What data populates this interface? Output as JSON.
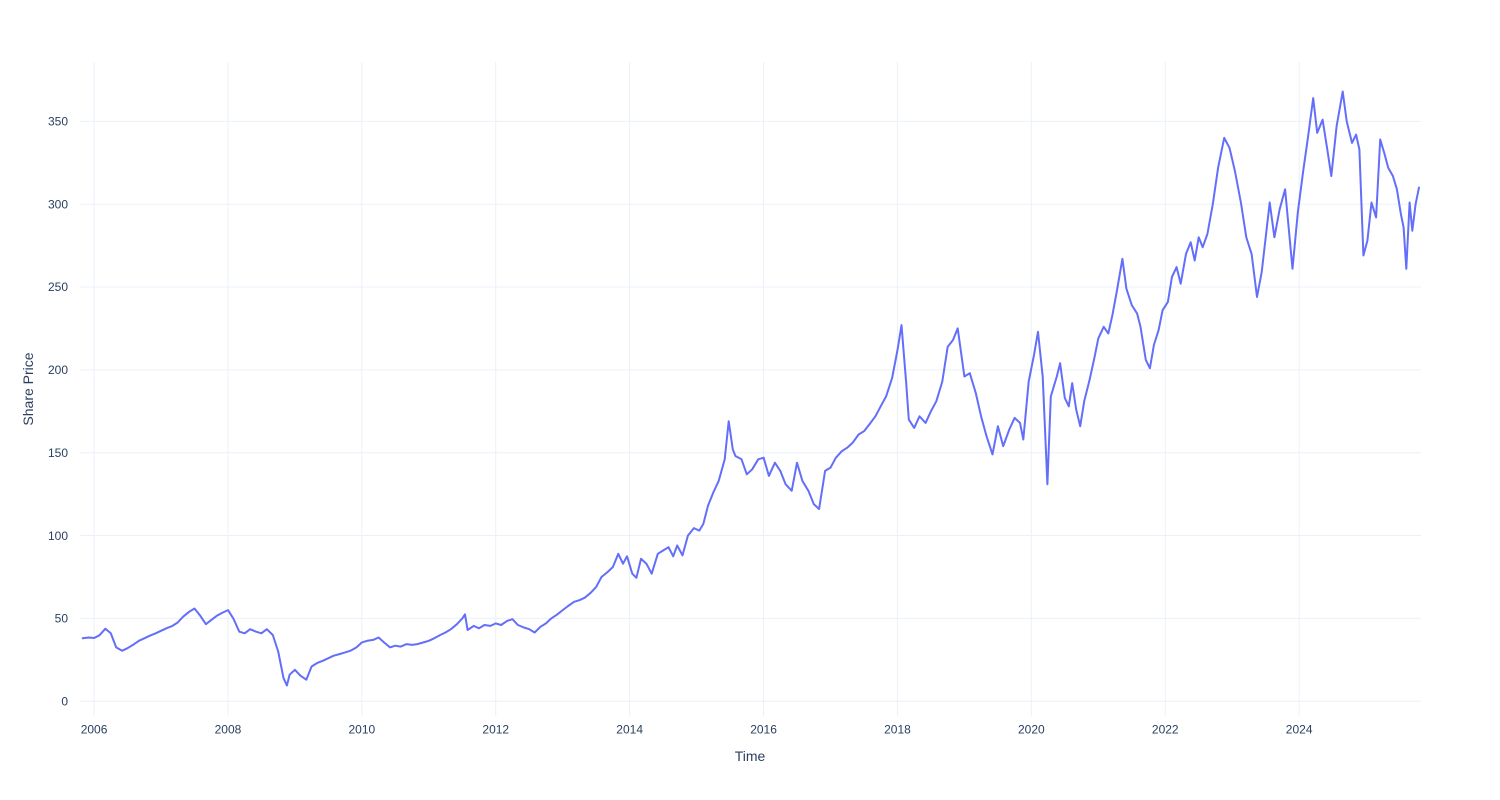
{
  "chart_data": {
    "type": "line",
    "title": "",
    "xlabel": "Time",
    "ylabel": "Share Price",
    "series_name": "Share Price",
    "line_color": "#636EFA",
    "grid_color": "#EBF0F8",
    "font_color": "#2a3f5f",
    "background_color": "#ffffff",
    "grid": true,
    "legend": false,
    "line_width": 2,
    "x_ticks": [
      2006,
      2008,
      2010,
      2012,
      2014,
      2016,
      2018,
      2020,
      2022,
      2024
    ],
    "y_ticks": [
      0,
      50,
      100,
      150,
      200,
      250,
      300,
      350
    ],
    "xlim": [
      2005.79,
      2025.82
    ],
    "ylim": [
      -8.9,
      385.8
    ],
    "x": [
      2005.83,
      2005.92,
      2006.0,
      2006.08,
      2006.17,
      2006.25,
      2006.33,
      2006.42,
      2006.5,
      2006.58,
      2006.67,
      2006.75,
      2006.83,
      2006.92,
      2007.0,
      2007.08,
      2007.17,
      2007.25,
      2007.33,
      2007.42,
      2007.5,
      2007.58,
      2007.67,
      2007.75,
      2007.83,
      2007.92,
      2008.0,
      2008.08,
      2008.17,
      2008.25,
      2008.33,
      2008.42,
      2008.5,
      2008.58,
      2008.67,
      2008.75,
      2008.83,
      2008.88,
      2008.92,
      2009.0,
      2009.08,
      2009.17,
      2009.25,
      2009.33,
      2009.42,
      2009.5,
      2009.58,
      2009.67,
      2009.75,
      2009.83,
      2009.92,
      2010.0,
      2010.08,
      2010.17,
      2010.25,
      2010.33,
      2010.42,
      2010.5,
      2010.58,
      2010.67,
      2010.75,
      2010.83,
      2010.92,
      2011.0,
      2011.08,
      2011.17,
      2011.25,
      2011.33,
      2011.42,
      2011.5,
      2011.54,
      2011.58,
      2011.67,
      2011.75,
      2011.83,
      2011.92,
      2012.0,
      2012.08,
      2012.17,
      2012.25,
      2012.33,
      2012.42,
      2012.5,
      2012.58,
      2012.67,
      2012.75,
      2012.83,
      2012.92,
      2013.0,
      2013.08,
      2013.17,
      2013.25,
      2013.33,
      2013.42,
      2013.5,
      2013.58,
      2013.67,
      2013.75,
      2013.83,
      2013.9,
      2013.96,
      2014.04,
      2014.1,
      2014.17,
      2014.25,
      2014.33,
      2014.42,
      2014.5,
      2014.58,
      2014.65,
      2014.71,
      2014.79,
      2014.87,
      2014.96,
      2015.04,
      2015.1,
      2015.17,
      2015.25,
      2015.33,
      2015.42,
      2015.48,
      2015.54,
      2015.58,
      2015.67,
      2015.75,
      2015.83,
      2015.92,
      2016.0,
      2016.08,
      2016.17,
      2016.25,
      2016.33,
      2016.42,
      2016.5,
      2016.58,
      2016.67,
      2016.75,
      2016.83,
      2016.92,
      2017.0,
      2017.08,
      2017.17,
      2017.25,
      2017.33,
      2017.42,
      2017.5,
      2017.58,
      2017.67,
      2017.75,
      2017.83,
      2017.92,
      2018.0,
      2018.06,
      2018.13,
      2018.17,
      2018.25,
      2018.33,
      2018.42,
      2018.5,
      2018.58,
      2018.67,
      2018.75,
      2018.83,
      2018.9,
      2019.0,
      2019.08,
      2019.17,
      2019.25,
      2019.33,
      2019.42,
      2019.5,
      2019.58,
      2019.67,
      2019.75,
      2019.83,
      2019.88,
      2019.96,
      2020.04,
      2020.1,
      2020.17,
      2020.24,
      2020.29,
      2020.38,
      2020.43,
      2020.5,
      2020.56,
      2020.61,
      2020.67,
      2020.73,
      2020.79,
      2020.87,
      2020.94,
      2021.0,
      2021.08,
      2021.15,
      2021.21,
      2021.28,
      2021.36,
      2021.42,
      2021.5,
      2021.58,
      2021.63,
      2021.71,
      2021.77,
      2021.83,
      2021.9,
      2021.96,
      2022.04,
      2022.1,
      2022.17,
      2022.23,
      2022.31,
      2022.38,
      2022.44,
      2022.5,
      2022.56,
      2022.63,
      2022.71,
      2022.79,
      2022.88,
      2022.96,
      2023.04,
      2023.13,
      2023.21,
      2023.29,
      2023.37,
      2023.44,
      2023.56,
      2023.63,
      2023.71,
      2023.79,
      2023.85,
      2023.9,
      2023.98,
      2024.06,
      2024.13,
      2024.21,
      2024.27,
      2024.35,
      2024.42,
      2024.48,
      2024.56,
      2024.65,
      2024.71,
      2024.79,
      2024.85,
      2024.9,
      2024.96,
      2025.02,
      2025.08,
      2025.15,
      2025.21,
      2025.27,
      2025.33,
      2025.4,
      2025.46,
      2025.52,
      2025.56,
      2025.6,
      2025.65,
      2025.69,
      2025.74,
      2025.79
    ],
    "y": [
      38,
      38.5,
      38.2,
      39.8,
      43.8,
      41,
      32.5,
      30.5,
      32,
      34,
      36.5,
      38,
      39.5,
      41,
      42.5,
      44,
      45.5,
      47.5,
      51,
      54,
      56,
      52,
      46.5,
      49,
      51.5,
      53.5,
      55,
      50,
      42,
      41,
      43.5,
      42,
      41,
      43.5,
      40,
      30,
      14,
      9.5,
      16,
      19,
      15.5,
      13,
      21,
      23,
      24.5,
      26,
      27.5,
      28.5,
      29.5,
      30.5,
      32.5,
      35.5,
      36.5,
      37,
      38.5,
      35.5,
      32.5,
      33.5,
      33,
      34.5,
      34,
      34.5,
      35.5,
      36.5,
      38,
      40,
      41.5,
      43.5,
      46.5,
      50,
      52.5,
      43,
      45.5,
      44,
      46,
      45.5,
      47,
      46,
      48.5,
      49.5,
      46,
      44.5,
      43.5,
      41.5,
      45,
      47,
      50,
      52.5,
      55,
      57.5,
      60,
      61,
      62.5,
      65.5,
      69,
      75,
      78,
      81,
      89,
      83,
      87.5,
      77,
      74.5,
      86,
      83,
      77,
      89,
      91,
      93,
      87.5,
      94,
      88,
      100,
      104.5,
      103,
      107,
      118,
      126,
      133,
      146,
      169,
      152,
      148,
      146,
      137,
      140,
      146,
      147,
      136,
      144,
      139,
      131,
      127,
      144,
      133,
      127,
      119,
      116,
      139,
      141,
      147,
      151,
      153,
      156,
      161,
      163,
      167,
      172,
      178,
      184,
      195,
      212,
      227,
      192,
      170,
      165,
      172,
      168,
      175,
      181,
      193,
      214,
      218,
      225,
      196,
      198,
      186,
      172,
      160,
      149,
      166,
      154,
      164,
      171,
      168,
      158,
      193,
      209,
      223,
      196,
      131,
      184,
      196,
      204,
      183,
      178,
      192,
      176,
      166,
      181,
      194,
      207,
      219,
      226,
      222,
      233,
      248,
      267,
      249,
      239,
      234,
      226,
      206,
      201,
      215,
      224,
      236,
      241,
      256,
      262,
      252,
      270,
      277,
      266,
      280,
      274,
      282,
      300,
      322,
      340,
      334,
      320,
      301,
      280,
      270,
      244,
      259,
      301,
      280,
      297,
      309,
      283,
      261,
      295,
      320,
      340,
      364,
      343,
      351,
      333,
      317,
      347,
      368,
      350,
      337,
      342,
      333,
      269,
      278,
      301,
      292,
      339,
      331,
      322,
      317,
      309,
      294,
      286,
      261,
      301,
      284,
      300,
      310
    ]
  }
}
